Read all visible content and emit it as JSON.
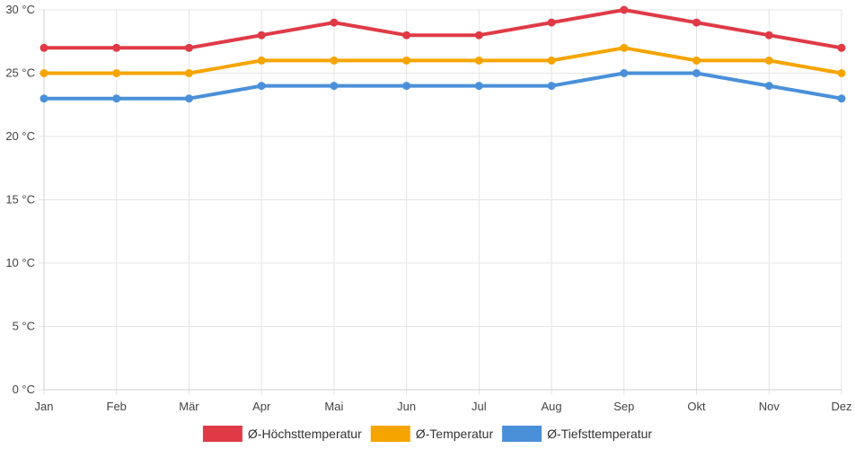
{
  "chart_data": {
    "type": "line",
    "title": "",
    "xlabel": "",
    "ylabel": "",
    "y_unit": " °C",
    "ylim": [
      0,
      30
    ],
    "y_ticks": [
      0,
      5,
      10,
      15,
      20,
      25,
      30
    ],
    "grid": true,
    "legend_position": "bottom",
    "categories": [
      "Jan",
      "Feb",
      "Mär",
      "Apr",
      "Mai",
      "Jun",
      "Jul",
      "Aug",
      "Sep",
      "Okt",
      "Nov",
      "Dez"
    ],
    "series": [
      {
        "name": "Ø-Höchsttemperatur",
        "color": "#e03a47",
        "values": [
          27,
          27,
          27,
          28,
          29,
          28,
          28,
          29,
          30,
          29,
          28,
          27
        ]
      },
      {
        "name": "Ø-Temperatur",
        "color": "#f6a400",
        "values": [
          25,
          25,
          25,
          26,
          26,
          26,
          26,
          26,
          27,
          26,
          26,
          25
        ]
      },
      {
        "name": "Ø-Tiefsttemperatur",
        "color": "#4a90d9",
        "values": [
          23,
          23,
          23,
          24,
          24,
          24,
          24,
          24,
          25,
          25,
          24,
          23
        ]
      }
    ]
  }
}
